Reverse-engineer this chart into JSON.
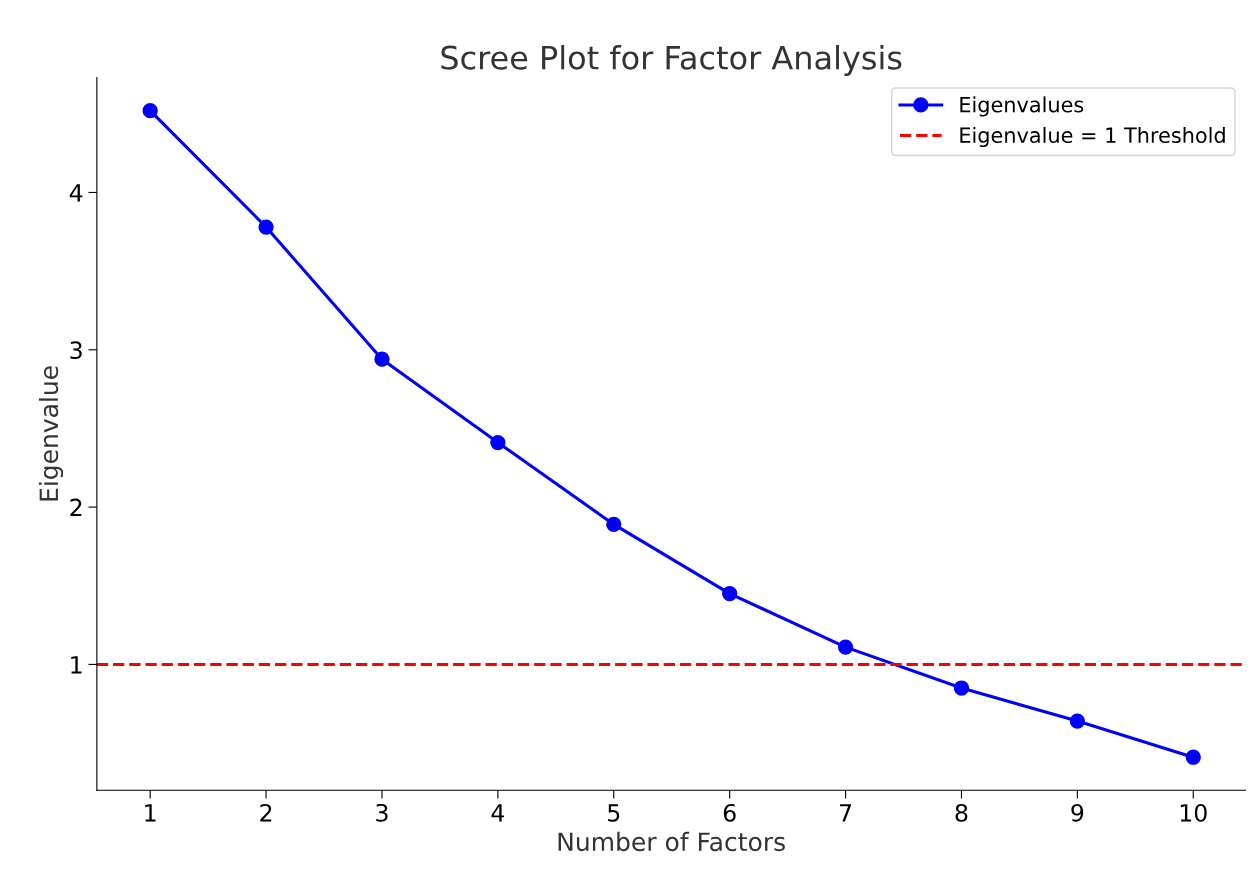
{
  "chart_data": {
    "type": "line",
    "title": "Scree Plot for Factor Analysis",
    "xlabel": "Number of Factors",
    "ylabel": "Eigenvalue",
    "x": [
      1,
      2,
      3,
      4,
      5,
      6,
      7,
      8,
      9,
      10
    ],
    "series": [
      {
        "name": "Eigenvalues",
        "color": "#0000ff",
        "values": [
          4.52,
          3.78,
          2.94,
          2.41,
          1.89,
          1.45,
          1.11,
          0.85,
          0.64,
          0.41
        ]
      }
    ],
    "marker": "circle",
    "line_style": "solid",
    "ref_lines": [
      {
        "axis": "y",
        "value": 1,
        "label": "Eigenvalue = 1 Threshold",
        "color": "#ff0000",
        "line_style": "dashed"
      }
    ],
    "xlim": [
      0.54,
      10.45
    ],
    "ylim": [
      0.2,
      4.73
    ],
    "xticks": [
      1,
      2,
      3,
      4,
      5,
      6,
      7,
      8,
      9,
      10
    ],
    "yticks": [
      1,
      2,
      3,
      4
    ],
    "grid": false,
    "legend": "top right"
  }
}
